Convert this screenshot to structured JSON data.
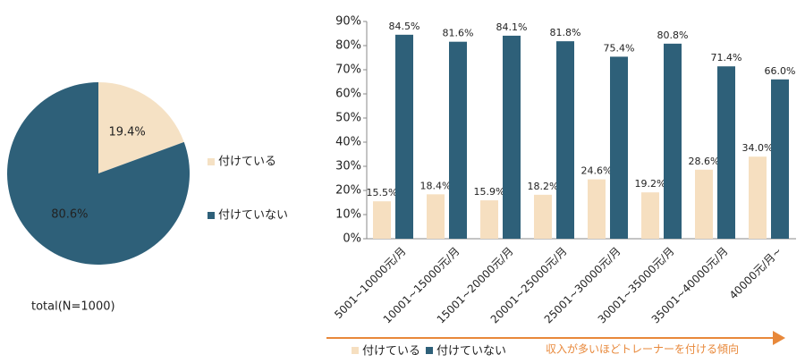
{
  "chart_data": [
    {
      "type": "pie",
      "categories": [
        "付けている",
        "付けていない"
      ],
      "values": [
        19.4,
        80.6
      ],
      "value_labels": [
        "19.4%",
        "80.6%"
      ],
      "colors": [
        "#f5e1c4",
        "#2e6079"
      ],
      "caption": "total(N=1000)"
    },
    {
      "type": "bar",
      "categories": [
        "5001~10000元/月",
        "10001~15000元/月",
        "15001~20000元/月",
        "20001~25000元/月",
        "25001~30000元/月",
        "30001~35000元/月",
        "35001~40000元/月",
        "40000元/月~"
      ],
      "series": [
        {
          "name": "付けている",
          "color": "#f6dfc0",
          "values": [
            15.5,
            18.4,
            15.9,
            18.2,
            24.6,
            19.2,
            28.6,
            34.0
          ],
          "value_labels": [
            "15.5%",
            "18.4%",
            "15.9%",
            "18.2%",
            "24.6%",
            "19.2%",
            "28.6%",
            "34.0%"
          ]
        },
        {
          "name": "付けていない",
          "color": "#2e6079",
          "values": [
            84.5,
            81.6,
            84.1,
            81.8,
            75.4,
            80.8,
            71.4,
            66.0
          ],
          "value_labels": [
            "84.5%",
            "81.6%",
            "84.1%",
            "81.8%",
            "75.4%",
            "80.8%",
            "71.4%",
            "66.0%"
          ]
        }
      ],
      "ylim": [
        0,
        90
      ],
      "yticks": [
        {
          "value": 0,
          "label": "0%"
        },
        {
          "value": 10,
          "label": "10%"
        },
        {
          "value": 20,
          "label": "20%"
        },
        {
          "value": 30,
          "label": "30%"
        },
        {
          "value": 40,
          "label": "40%"
        },
        {
          "value": 50,
          "label": "50%"
        },
        {
          "value": 60,
          "label": "60%"
        },
        {
          "value": 70,
          "label": "70%"
        },
        {
          "value": 80,
          "label": "80%"
        },
        {
          "value": 90,
          "label": "90%"
        }
      ],
      "grid": false,
      "annotation": "収入が多いほどトレーナーを付ける傾向"
    }
  ]
}
